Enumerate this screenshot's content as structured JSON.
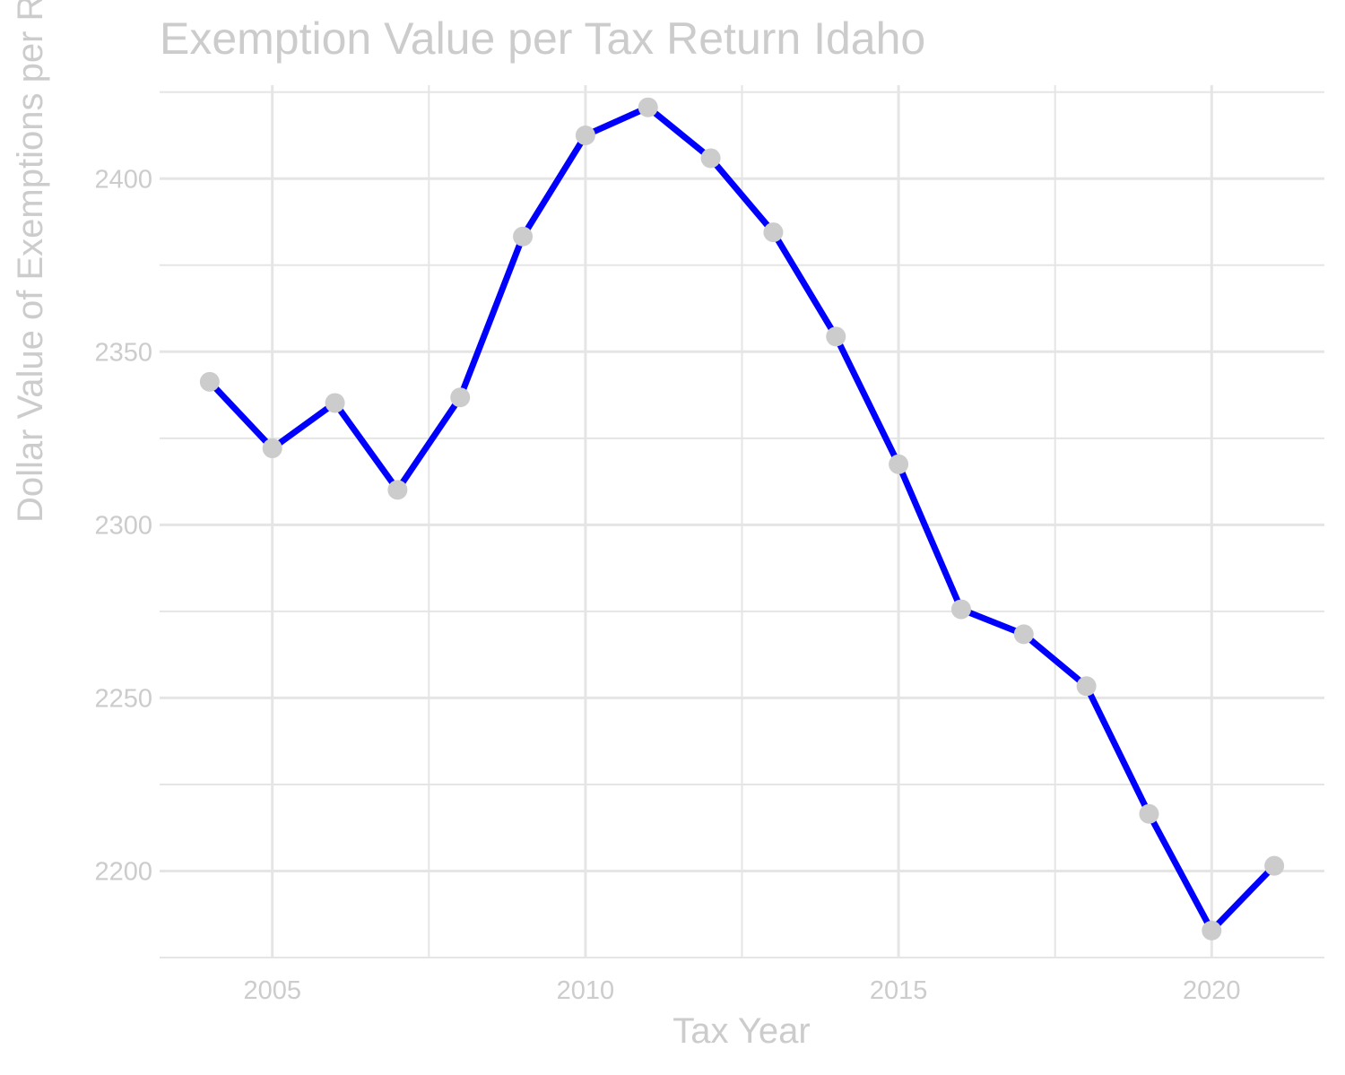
{
  "chart_data": {
    "type": "line",
    "title": "Exemption Value per Tax Return Idaho",
    "xlabel": "Tax Year",
    "ylabel": "Dollar Value of Exemptions per Return",
    "x": [
      2004,
      2005,
      2006,
      2007,
      2008,
      2009,
      2010,
      2011,
      2012,
      2013,
      2014,
      2015,
      2016,
      2017,
      2018,
      2019,
      2020,
      2021
    ],
    "series": [
      {
        "values": [
          2341.3,
          2322.1,
          2335.2,
          2310.1,
          2336.8,
          2383.3,
          2412.5,
          2420.6,
          2405.9,
          2384.5,
          2354.4,
          2317.5,
          2275.6,
          2268.4,
          2253.4,
          2216.5,
          2182.8,
          2201.5
        ]
      }
    ],
    "xticks": [
      "2005",
      "2010",
      "2015",
      "2020"
    ],
    "yticks": [
      "2200",
      "2250",
      "2300",
      "2350",
      "2400"
    ],
    "xlim": [
      2003.2,
      2021.8
    ],
    "ylim": [
      2175,
      2427
    ],
    "grid": true,
    "line_color": "#0000ff",
    "marker_color": "#cccccc",
    "grid_color": "#e5e5e5",
    "text_color": "#cccccc"
  }
}
